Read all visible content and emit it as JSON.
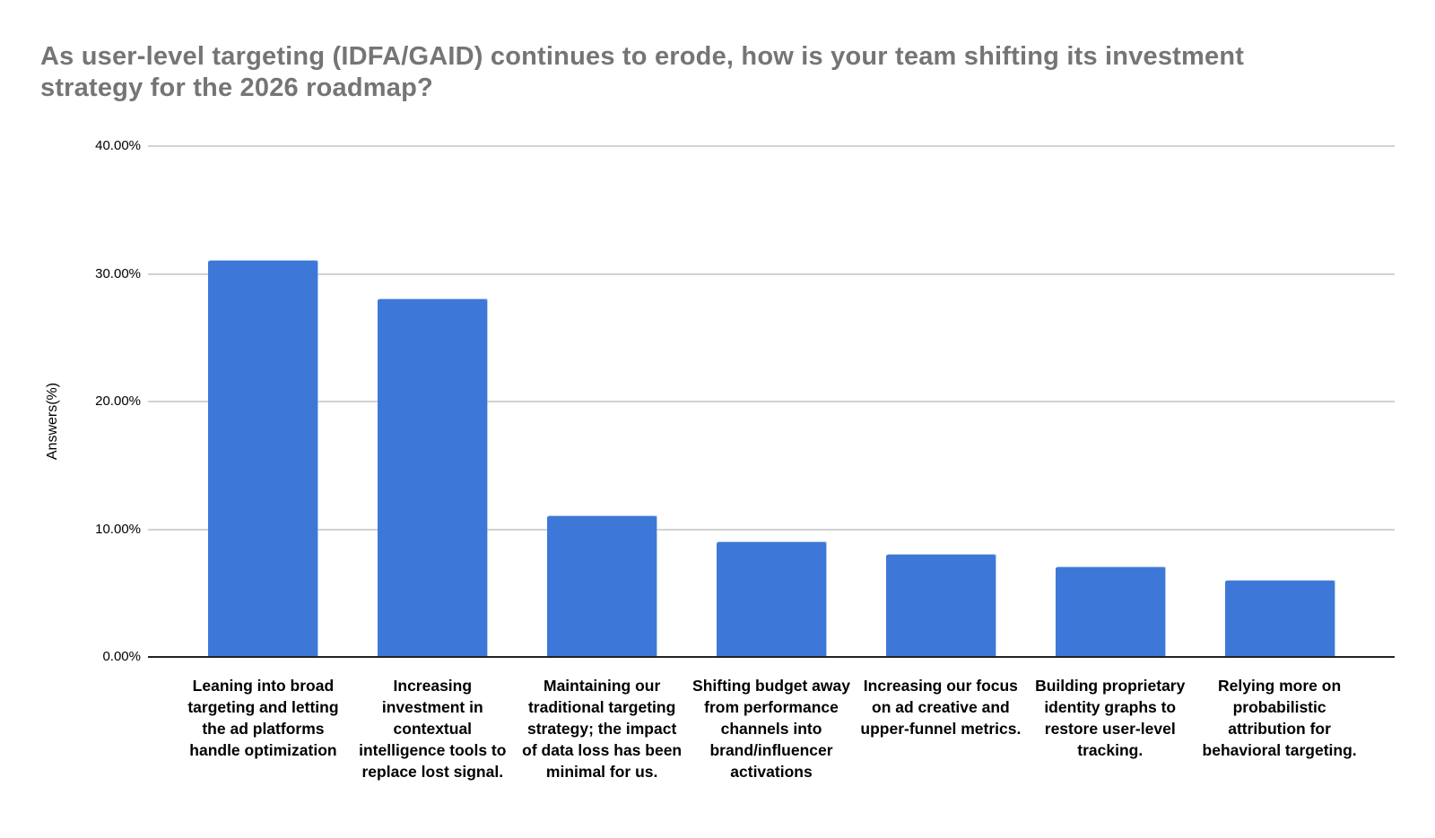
{
  "header": {
    "title_lines": [
      "As user-level targeting (IDFA/GAID) continues to erode, how is your team shifting its investment",
      "strategy for the 2026 roadmap?"
    ]
  },
  "chart_data": {
    "type": "bar",
    "title": "As user-level targeting (IDFA/GAID) continues to erode, how is your team shifting its investment strategy for the 2026 roadmap?",
    "xlabel": "",
    "ylabel": "Answers(%)",
    "ylim": [
      0,
      40
    ],
    "ytick_labels": [
      "0.00%",
      "10.00%",
      "20.00%",
      "30.00%",
      "40.00%"
    ],
    "ytick_values": [
      0,
      10,
      20,
      30,
      40
    ],
    "grid": true,
    "legend": "none",
    "categories": [
      "Leaning into broad targeting and letting the ad platforms handle optimization",
      "Increasing investment in contextual intelligence tools to replace lost signal.",
      "Maintaining our traditional targeting strategy; the impact of data loss has been minimal for us.",
      "Shifting budget away from performance channels into brand/influencer activations",
      "Increasing our focus on ad creative and upper-funnel metrics.",
      "Building proprietary identity graphs to restore user-level tracking.",
      "Relying more on probabilistic attribution for behavioral targeting."
    ],
    "values": [
      31,
      28,
      11,
      9,
      8,
      7,
      6
    ],
    "value_unit": "%"
  },
  "colors": {
    "bar": "#3d78d8",
    "title_text": "#757575",
    "axis_text": "#000000",
    "gridline": "#d2d2d2",
    "baseline": "#222222",
    "background": "#ffffff"
  }
}
